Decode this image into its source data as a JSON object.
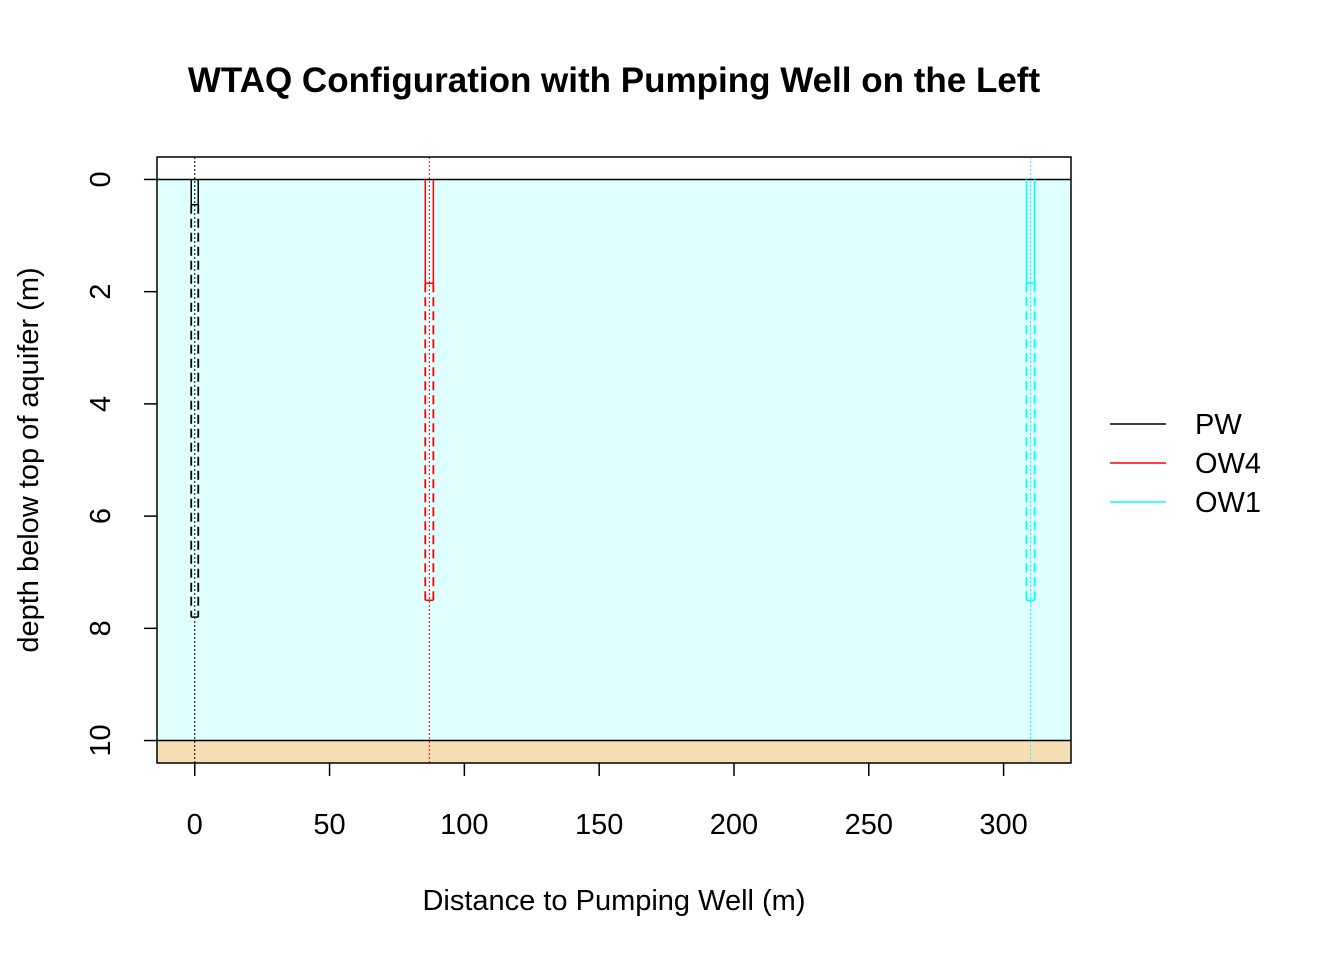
{
  "chart_data": {
    "type": "diagram-plot",
    "title": "WTAQ Configuration with Pumping Well on the Left",
    "xlabel": "Distance to Pumping Well (m)",
    "ylabel": "depth below top of aquifer (m)",
    "xlim": [
      -14,
      325
    ],
    "ylim": [
      10.4,
      -0.4
    ],
    "y_reversed": true,
    "x_ticks": [
      0,
      50,
      100,
      150,
      200,
      250,
      300
    ],
    "y_ticks": [
      0,
      2,
      4,
      6,
      8,
      10
    ],
    "aquifer": {
      "top": 0,
      "bottom": 10,
      "aquifer_color": "#E0FFFF",
      "base_color": "#F5DEB3"
    },
    "wells": [
      {
        "name": "PW",
        "color": "#000000",
        "x": 0,
        "screen_top": 0,
        "screen_bottom": 0.45,
        "casing_bottom": 7.8,
        "half_width": 1.3
      },
      {
        "name": "OW4",
        "color": "#FF0000",
        "x": 87,
        "screen_top": 0,
        "screen_bottom": 1.85,
        "casing_bottom": 7.5,
        "half_width": 1.5
      },
      {
        "name": "OW1",
        "color": "#00FFFF",
        "x": 310,
        "screen_top": 0,
        "screen_bottom": 1.85,
        "casing_bottom": 7.5,
        "half_width": 1.5
      }
    ],
    "legend": {
      "position": "right",
      "entries": [
        {
          "label": "PW",
          "color": "#000000"
        },
        {
          "label": "OW4",
          "color": "#FF0000"
        },
        {
          "label": "OW1",
          "color": "#00FFFF"
        }
      ]
    }
  }
}
